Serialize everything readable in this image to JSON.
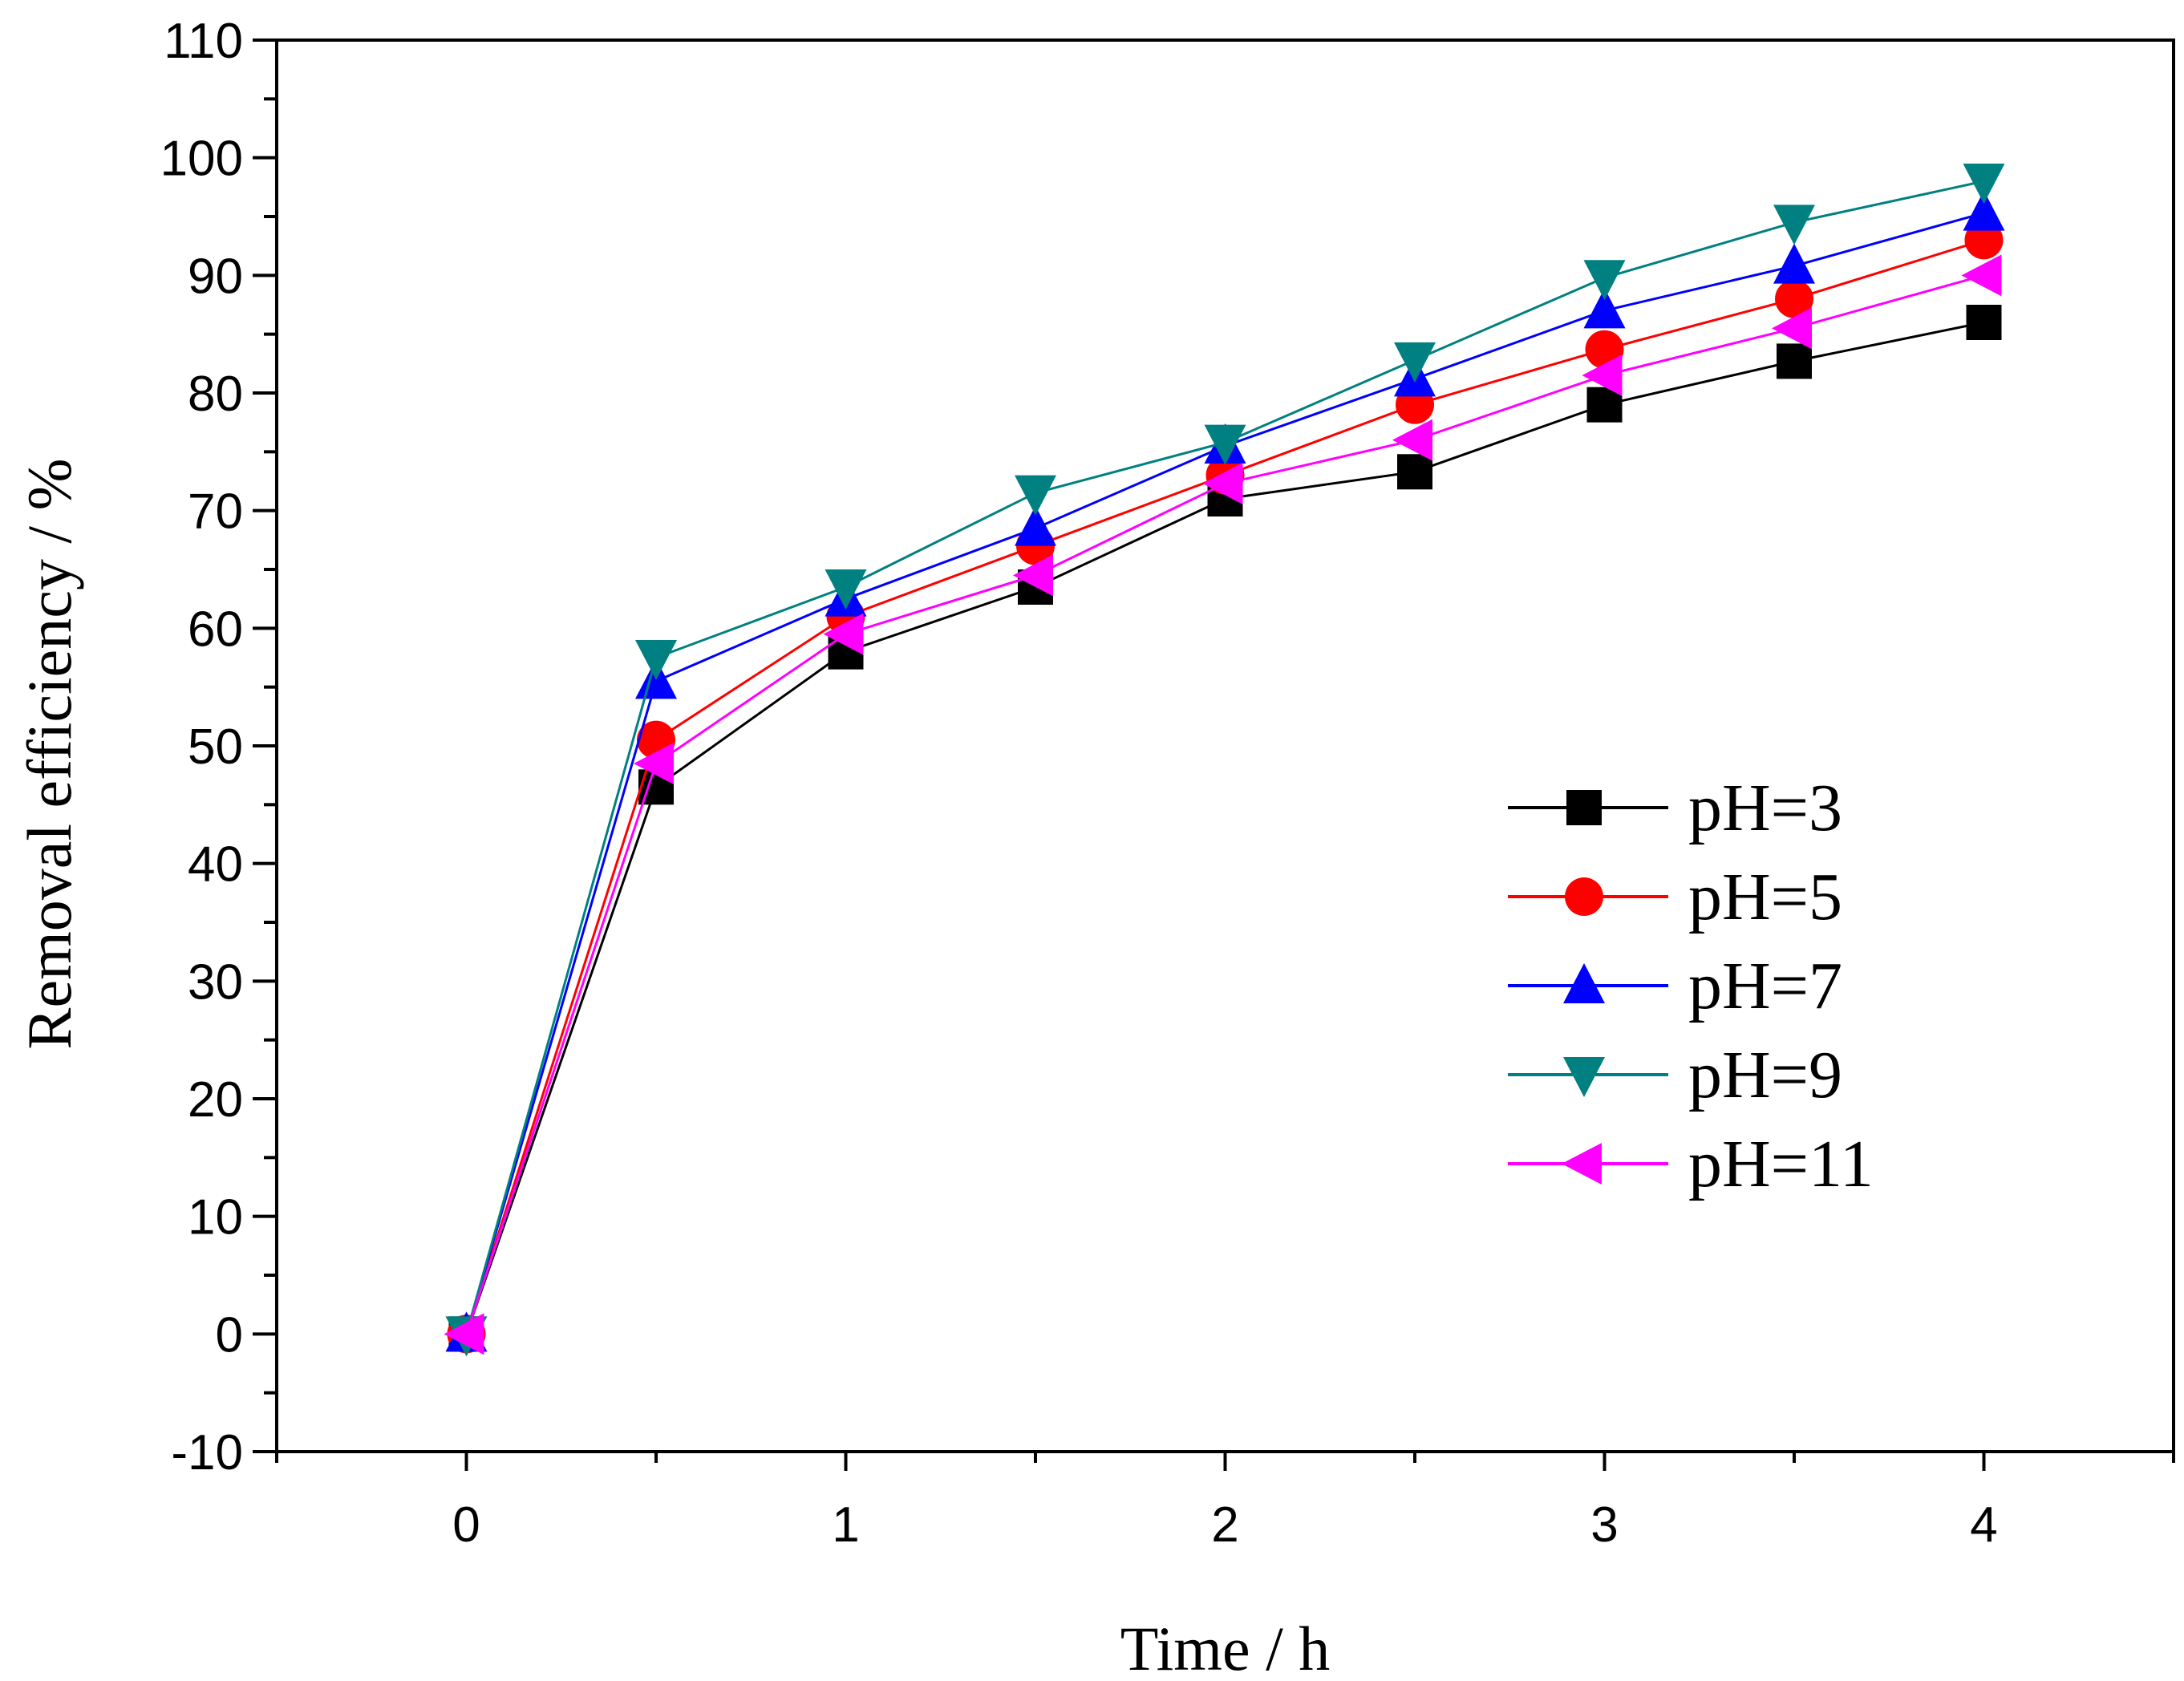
{
  "chart_data": {
    "type": "line",
    "title": "",
    "xlabel": "Time / h",
    "ylabel": "Removal efficiency / %",
    "xlim": [
      -0.5,
      4.5
    ],
    "ylim": [
      -10,
      110
    ],
    "x_ticks": [
      0,
      1,
      2,
      3,
      4
    ],
    "x_minor_ticks": [
      -0.5,
      0.5,
      1.5,
      2.5,
      3.5,
      4.5
    ],
    "y_ticks": [
      -10,
      0,
      10,
      20,
      30,
      40,
      50,
      60,
      70,
      80,
      90,
      100,
      110
    ],
    "y_tick_labels": [
      "-10",
      "0",
      "10",
      "20",
      "30",
      "40",
      "50",
      "60",
      "70",
      "80",
      "90",
      "100",
      "110"
    ],
    "x_tick_labels": [
      "0",
      "1",
      "2",
      "3",
      "4"
    ],
    "grid": false,
    "legend_position": "right-middle",
    "x": [
      0,
      0.5,
      1,
      1.5,
      2,
      2.5,
      3,
      3.5,
      4
    ],
    "series": [
      {
        "name": "pH=3",
        "color": "#000000",
        "marker": "square",
        "values": [
          0,
          46.5,
          58,
          63.5,
          71,
          73.3,
          79,
          82.7,
          86
        ]
      },
      {
        "name": "pH=5",
        "color": "#ff0000",
        "marker": "circle",
        "values": [
          0,
          50.5,
          61,
          67,
          73,
          79,
          83.7,
          88,
          93
        ]
      },
      {
        "name": "pH=7",
        "color": "#0000ff",
        "marker": "triangle-up",
        "values": [
          0,
          55.5,
          62.5,
          68.5,
          75.5,
          81.2,
          87,
          90.8,
          95.3
        ]
      },
      {
        "name": "pH=9",
        "color": "#008080",
        "marker": "triangle-down",
        "values": [
          0,
          57.5,
          63.5,
          71.5,
          75.8,
          82.8,
          89.8,
          94.5,
          98
        ]
      },
      {
        "name": "pH=11",
        "color": "#ff00ff",
        "marker": "triangle-left",
        "values": [
          0,
          48.5,
          59.5,
          64.5,
          72.3,
          76,
          81.5,
          85.5,
          90
        ]
      }
    ]
  }
}
